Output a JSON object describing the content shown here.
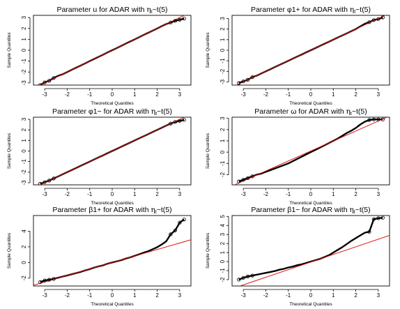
{
  "chart_data": [
    {
      "type": "scatter",
      "title_prefix": "Parameter",
      "param": "u",
      "title_suffix": "for ADAR  with",
      "dist_tail": "~t(5)",
      "xlabel": "Theoretical Quantiles",
      "ylabel": "Sample Quantiles",
      "xlim": [
        -3.5,
        3.5
      ],
      "ylim": [
        -3.2,
        3.2
      ],
      "xticks": [
        "-3",
        "-2",
        "-1",
        "0",
        "1",
        "2",
        "3"
      ],
      "yticks": [
        "-3",
        "-2",
        "-1",
        "0",
        "1",
        "2",
        "3"
      ],
      "xtick_values": [
        -3,
        -2,
        -1,
        0,
        1,
        2,
        3
      ],
      "ytick_values": [
        -3,
        -2,
        -1,
        0,
        1,
        2,
        3
      ],
      "reference_line": {
        "color": "#e01010",
        "x": [
          -3.5,
          3.5
        ],
        "y": [
          -3.5,
          3.5
        ]
      },
      "points": {
        "x": [
          -3.2,
          -3.0,
          -2.8,
          -2.6,
          -2.4,
          -2.2,
          -2.0,
          -1.8,
          -1.6,
          -1.4,
          -1.2,
          -1.0,
          -0.8,
          -0.6,
          -0.4,
          -0.2,
          0.0,
          0.2,
          0.4,
          0.6,
          0.8,
          1.0,
          1.2,
          1.4,
          1.6,
          1.8,
          2.0,
          2.2,
          2.4,
          2.6,
          2.8,
          3.0,
          3.2
        ],
        "y": [
          -3.2,
          -2.95,
          -2.8,
          -2.55,
          -2.35,
          -2.2,
          -2.0,
          -1.8,
          -1.6,
          -1.4,
          -1.2,
          -1.0,
          -0.8,
          -0.6,
          -0.4,
          -0.2,
          0.0,
          0.2,
          0.4,
          0.6,
          0.8,
          1.0,
          1.2,
          1.4,
          1.6,
          1.8,
          2.0,
          2.2,
          2.4,
          2.55,
          2.7,
          2.8,
          2.9
        ]
      }
    },
    {
      "type": "scatter",
      "title_prefix": "Parameter",
      "param": "φ1+",
      "title_suffix": "for ADAR with",
      "dist_tail": "~t(5)",
      "xlabel": "Theoretical Quantiles",
      "ylabel": "Sample Quantiles",
      "xlim": [
        -3.5,
        3.5
      ],
      "ylim": [
        -3.3,
        3.3
      ],
      "xticks": [
        "-3",
        "-2",
        "-1",
        "0",
        "1",
        "2",
        "3"
      ],
      "yticks": [
        "-3",
        "-2",
        "-1",
        "0",
        "1",
        "2",
        "3"
      ],
      "xtick_values": [
        -3,
        -2,
        -1,
        0,
        1,
        2,
        3
      ],
      "ytick_values": [
        -3,
        -2,
        -1,
        0,
        1,
        2,
        3
      ],
      "reference_line": {
        "color": "#e01010",
        "x": [
          -3.5,
          3.5
        ],
        "y": [
          -3.5,
          3.5
        ]
      },
      "points": {
        "x": [
          -3.2,
          -3.0,
          -2.8,
          -2.6,
          -2.4,
          -2.2,
          -2.0,
          -1.8,
          -1.6,
          -1.4,
          -1.2,
          -1.0,
          -0.8,
          -0.6,
          -0.4,
          -0.2,
          0.0,
          0.2,
          0.4,
          0.6,
          0.8,
          1.0,
          1.2,
          1.4,
          1.6,
          1.8,
          2.0,
          2.2,
          2.4,
          2.6,
          2.8,
          3.0,
          3.2
        ],
        "y": [
          -3.1,
          -2.95,
          -2.8,
          -2.55,
          -2.4,
          -2.2,
          -2.0,
          -1.8,
          -1.6,
          -1.4,
          -1.2,
          -1.0,
          -0.8,
          -0.6,
          -0.4,
          -0.2,
          0.0,
          0.2,
          0.4,
          0.6,
          0.8,
          1.0,
          1.2,
          1.4,
          1.6,
          1.8,
          2.0,
          2.25,
          2.5,
          2.65,
          2.85,
          2.95,
          3.1
        ]
      }
    },
    {
      "type": "scatter",
      "title_prefix": "Parameter",
      "param": "φ1−",
      "title_suffix": "for ADAR  with",
      "dist_tail": "~t(5)",
      "xlabel": "Theoretical Quantiles",
      "ylabel": "Sample Quantiles",
      "xlim": [
        -3.5,
        3.5
      ],
      "ylim": [
        -3.2,
        3.2
      ],
      "xticks": [
        "-3",
        "-2",
        "-1",
        "0",
        "1",
        "2",
        "3"
      ],
      "yticks": [
        "-3",
        "-2",
        "-1",
        "0",
        "1",
        "2",
        "3"
      ],
      "xtick_values": [
        -3,
        -2,
        -1,
        0,
        1,
        2,
        3
      ],
      "ytick_values": [
        -3,
        -2,
        -1,
        0,
        1,
        2,
        3
      ],
      "reference_line": {
        "color": "#e01010",
        "x": [
          -3.5,
          3.5
        ],
        "y": [
          -3.5,
          3.5
        ]
      },
      "points": {
        "x": [
          -3.2,
          -3.0,
          -2.8,
          -2.6,
          -2.4,
          -2.2,
          -2.0,
          -1.8,
          -1.6,
          -1.4,
          -1.2,
          -1.0,
          -0.8,
          -0.6,
          -0.4,
          -0.2,
          0.0,
          0.2,
          0.4,
          0.6,
          0.8,
          1.0,
          1.2,
          1.4,
          1.6,
          1.8,
          2.0,
          2.2,
          2.4,
          2.6,
          2.8,
          3.0,
          3.2
        ],
        "y": [
          -3.1,
          -2.95,
          -2.8,
          -2.6,
          -2.4,
          -2.2,
          -2.0,
          -1.8,
          -1.6,
          -1.4,
          -1.2,
          -1.0,
          -0.8,
          -0.6,
          -0.4,
          -0.2,
          0.0,
          0.2,
          0.4,
          0.6,
          0.8,
          1.0,
          1.2,
          1.4,
          1.6,
          1.8,
          2.0,
          2.2,
          2.4,
          2.6,
          2.75,
          2.85,
          2.95
        ]
      }
    },
    {
      "type": "scatter",
      "title_prefix": "Parameter",
      "param": "ω",
      "title_suffix": "for ADAR  with",
      "dist_tail": "~t(5)",
      "xlabel": "Theoretical Quantiles",
      "ylabel": "Sample Quantiles",
      "xlim": [
        -3.5,
        3.5
      ],
      "ylim": [
        -2.9,
        3.1
      ],
      "xticks": [
        "-3",
        "-2",
        "-1",
        "0",
        "1",
        "2",
        "3"
      ],
      "yticks": [
        "-2",
        "-1",
        "0",
        "1",
        "2",
        "3"
      ],
      "xtick_values": [
        -3,
        -2,
        -1,
        0,
        1,
        2,
        3
      ],
      "ytick_values": [
        -2,
        -1,
        0,
        1,
        2,
        3
      ],
      "reference_line": {
        "color": "#e01010",
        "x": [
          -3.5,
          3.5
        ],
        "y": [
          -3.0,
          3.2
        ]
      },
      "points": {
        "x": [
          -3.2,
          -3.0,
          -2.8,
          -2.6,
          -2.4,
          -2.2,
          -2.0,
          -1.8,
          -1.6,
          -1.4,
          -1.2,
          -1.0,
          -0.8,
          -0.6,
          -0.4,
          -0.2,
          0.0,
          0.2,
          0.4,
          0.6,
          0.8,
          1.0,
          1.2,
          1.4,
          1.6,
          1.8,
          2.0,
          2.2,
          2.4,
          2.6,
          2.8,
          3.0,
          3.2
        ],
        "y": [
          -2.6,
          -2.45,
          -2.3,
          -2.15,
          -2.0,
          -1.9,
          -1.75,
          -1.6,
          -1.45,
          -1.3,
          -1.15,
          -1.0,
          -0.8,
          -0.6,
          -0.4,
          -0.2,
          0.0,
          0.2,
          0.4,
          0.6,
          0.8,
          1.0,
          1.2,
          1.45,
          1.7,
          1.9,
          2.15,
          2.45,
          2.7,
          2.85,
          2.9,
          2.9,
          2.9
        ]
      }
    },
    {
      "type": "scatter",
      "title_prefix": "Parameter",
      "param": "β1+",
      "title_suffix": "for ADAR  with",
      "dist_tail": "~t(5)",
      "xlabel": "Theoretical Quantiles",
      "ylabel": "Sample Quantiles",
      "xlim": [
        -3.5,
        3.5
      ],
      "ylim": [
        -3.0,
        6.0
      ],
      "xticks": [
        "-3",
        "-2",
        "-1",
        "0",
        "1",
        "2",
        "3"
      ],
      "yticks": [
        "-2",
        "0",
        "2",
        "4"
      ],
      "xtick_values": [
        -3,
        -2,
        -1,
        0,
        1,
        2,
        3
      ],
      "ytick_values": [
        -2,
        0,
        2,
        4
      ],
      "reference_line": {
        "color": "#e01010",
        "x": [
          -3.5,
          3.5
        ],
        "y": [
          -2.9,
          2.9
        ]
      },
      "points": {
        "x": [
          -3.2,
          -3.0,
          -2.8,
          -2.6,
          -2.4,
          -2.2,
          -2.0,
          -1.8,
          -1.6,
          -1.4,
          -1.2,
          -1.0,
          -0.8,
          -0.6,
          -0.4,
          -0.2,
          0.0,
          0.2,
          0.4,
          0.6,
          0.8,
          1.0,
          1.2,
          1.4,
          1.6,
          1.8,
          2.0,
          2.2,
          2.4,
          2.6,
          2.8,
          3.0,
          3.2
        ],
        "y": [
          -2.5,
          -2.3,
          -2.2,
          -2.1,
          -1.95,
          -1.8,
          -1.65,
          -1.5,
          -1.35,
          -1.2,
          -1.0,
          -0.85,
          -0.65,
          -0.5,
          -0.35,
          -0.15,
          0.0,
          0.15,
          0.3,
          0.5,
          0.65,
          0.85,
          1.05,
          1.25,
          1.45,
          1.7,
          1.95,
          2.3,
          2.7,
          3.6,
          4.1,
          5.1,
          5.5
        ]
      }
    },
    {
      "type": "scatter",
      "title_prefix": "Parameter",
      "param": "β1−",
      "title_suffix": "for ADAR  with",
      "dist_tail": "~t(5)",
      "xlabel": "Theoretical Quantiles",
      "ylabel": "Sample Quantiles",
      "xlim": [
        -3.5,
        3.5
      ],
      "ylim": [
        -2.7,
        5.1
      ],
      "xticks": [
        "-3",
        "-2",
        "-1",
        "0",
        "1",
        "2",
        "3"
      ],
      "yticks": [
        "-2",
        "-1",
        "0",
        "1",
        "2",
        "3",
        "4",
        "5"
      ],
      "xtick_values": [
        -3,
        -2,
        -1,
        0,
        1,
        2,
        3
      ],
      "ytick_values": [
        -2,
        -1,
        0,
        1,
        2,
        3,
        4,
        5
      ],
      "reference_line": {
        "color": "#e01010",
        "x": [
          -3.5,
          3.5
        ],
        "y": [
          -3.0,
          2.9
        ]
      },
      "points": {
        "x": [
          -3.2,
          -3.0,
          -2.8,
          -2.6,
          -2.4,
          -2.2,
          -2.0,
          -1.8,
          -1.6,
          -1.4,
          -1.2,
          -1.0,
          -0.8,
          -0.6,
          -0.4,
          -0.2,
          0.0,
          0.2,
          0.4,
          0.6,
          0.8,
          1.0,
          1.2,
          1.4,
          1.6,
          1.8,
          2.0,
          2.2,
          2.4,
          2.6,
          2.8,
          3.0,
          3.2
        ],
        "y": [
          -2.0,
          -1.8,
          -1.65,
          -1.55,
          -1.45,
          -1.35,
          -1.25,
          -1.15,
          -1.05,
          -0.9,
          -0.8,
          -0.65,
          -0.55,
          -0.4,
          -0.3,
          -0.15,
          0.0,
          0.15,
          0.3,
          0.5,
          0.7,
          1.0,
          1.3,
          1.6,
          1.95,
          2.3,
          2.6,
          2.9,
          3.2,
          3.3,
          4.7,
          4.8,
          4.85
        ]
      }
    }
  ]
}
